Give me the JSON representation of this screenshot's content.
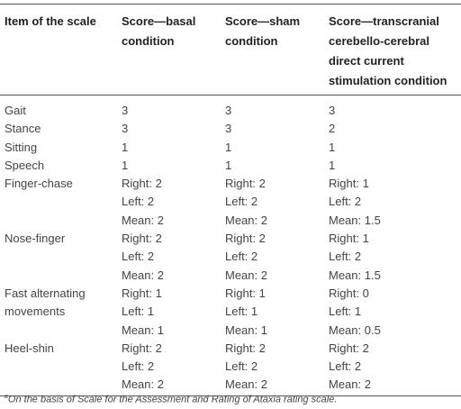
{
  "table": {
    "header": [
      "Item of the scale",
      "Score—basal condition",
      "Score—sham condition",
      "Score—transcranial cerebello-cerebral direct current stimulation condition"
    ],
    "rows": [
      {
        "item": "Gait",
        "scores": [
          [
            "3"
          ],
          [
            "3"
          ],
          [
            "3"
          ]
        ]
      },
      {
        "item": "Stance",
        "scores": [
          [
            "3"
          ],
          [
            "3"
          ],
          [
            "2"
          ]
        ]
      },
      {
        "item": "Sitting",
        "scores": [
          [
            "1"
          ],
          [
            "1"
          ],
          [
            "1"
          ]
        ]
      },
      {
        "item": "Speech",
        "scores": [
          [
            "1"
          ],
          [
            "1"
          ],
          [
            "1"
          ]
        ]
      },
      {
        "item": "Finger-chase",
        "scores": [
          [
            "Right: 2",
            "Left: 2",
            "Mean: 2"
          ],
          [
            "Right: 2",
            "Left: 2",
            "Mean: 2"
          ],
          [
            "Right: 1",
            "Left: 2",
            "Mean: 1.5"
          ]
        ]
      },
      {
        "item": "Nose-finger",
        "scores": [
          [
            "Right: 2",
            "Left: 2",
            "Mean: 2"
          ],
          [
            "Right: 2",
            "Left: 2",
            "Mean: 2"
          ],
          [
            "Right: 1",
            "Left: 2",
            "Mean: 1.5"
          ]
        ]
      },
      {
        "item": "Fast alternating movements",
        "scores": [
          [
            "Right: 1",
            "Left: 1",
            "Mean: 1"
          ],
          [
            "Right: 1",
            "Left: 1",
            "Mean: 1"
          ],
          [
            "Right: 0",
            "Left: 1",
            "Mean: 0.5"
          ]
        ]
      },
      {
        "item": "Heel-shin",
        "scores": [
          [
            "Right: 2",
            "Left: 2",
            "Mean: 2"
          ],
          [
            "Right: 2",
            "Left: 2",
            "Mean: 2"
          ],
          [
            "Right: 2",
            "Left: 2",
            "Mean: 2"
          ]
        ]
      }
    ]
  },
  "footnote": {
    "marker": "a",
    "text": "On the basis of Scale for the Assessment and Rating of Ataxia rating scale."
  }
}
